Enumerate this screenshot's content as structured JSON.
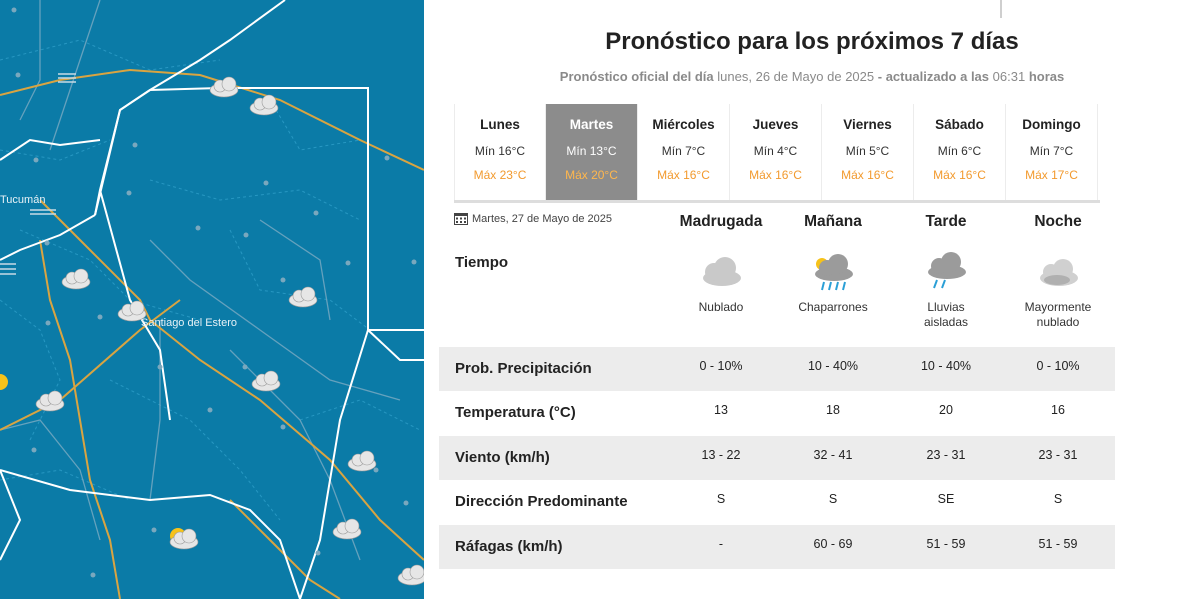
{
  "map": {
    "label_tucuman": "Tucumán",
    "label_santiago": "Santiago del Estero"
  },
  "forecast": {
    "title": "Pronóstico para los próximos 7 días",
    "subtitle_prefix": "Pronóstico oficial del día",
    "subtitle_date": "lunes, 26 de Mayo de 2025",
    "subtitle_mid": "- actualizado a las",
    "subtitle_time": "06:31",
    "subtitle_suffix": "horas",
    "selected_day": "Martes",
    "days": [
      {
        "name": "Lunes",
        "min": "Mín 16°C",
        "max": "Máx 23°C"
      },
      {
        "name": "Martes",
        "min": "Mín 13°C",
        "max": "Máx 20°C"
      },
      {
        "name": "Miércoles",
        "min": "Mín 7°C",
        "max": "Máx 16°C"
      },
      {
        "name": "Jueves",
        "min": "Mín 4°C",
        "max": "Máx 16°C"
      },
      {
        "name": "Viernes",
        "min": "Mín 5°C",
        "max": "Máx 16°C"
      },
      {
        "name": "Sábado",
        "min": "Mín 6°C",
        "max": "Máx 16°C"
      },
      {
        "name": "Domingo",
        "min": "Mín 7°C",
        "max": "Máx 17°C"
      }
    ],
    "detail": {
      "date": "Martes, 27 de Mayo de 2025",
      "periods": [
        "Madrugada",
        "Mañana",
        "Tarde",
        "Noche"
      ],
      "tiempo_label": "Tiempo",
      "weather": [
        {
          "icon": "cloudy-icon",
          "label": "Nublado"
        },
        {
          "icon": "showers-icon",
          "label": "Chaparrones"
        },
        {
          "icon": "isolated-rain-icon",
          "label": "Lluvias aisladas"
        },
        {
          "icon": "mostly-cloudy-night-icon",
          "label": "Mayormente nublado"
        }
      ],
      "rows": [
        {
          "label": "Prob. Precipitación",
          "values": [
            "0 - 10%",
            "10 - 40%",
            "10 - 40%",
            "0 - 10%"
          ]
        },
        {
          "label": "Temperatura (°C)",
          "values": [
            "13",
            "18",
            "20",
            "16"
          ]
        },
        {
          "label": "Viento (km/h)",
          "values": [
            "13 - 22",
            "32 - 41",
            "23 - 31",
            "23 - 31"
          ]
        },
        {
          "label": "Dirección Predominante",
          "values": [
            "S",
            "S",
            "SE",
            "S"
          ]
        },
        {
          "label": "Ráfagas (km/h)",
          "values": [
            "-",
            "60 - 69",
            "51 - 59",
            "51 - 59"
          ]
        }
      ]
    }
  },
  "colors": {
    "map_water": "#0a7aa6",
    "map_border": "#ffffff",
    "map_road": "#d9a441",
    "accent_max": "#f29a2e",
    "selected_tab": "#8c8c8c",
    "row_shade": "#ececec"
  }
}
